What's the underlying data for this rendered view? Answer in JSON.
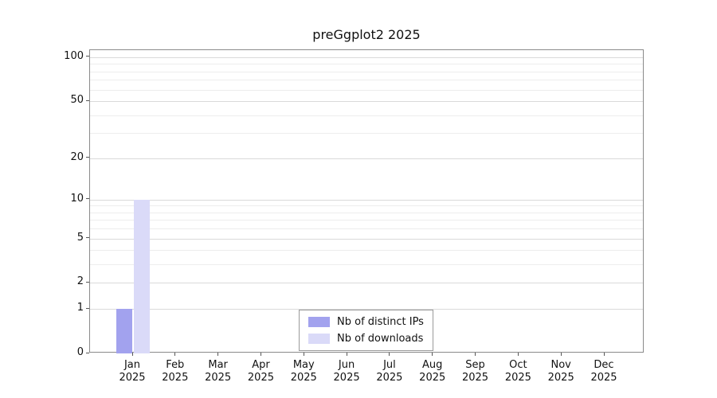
{
  "chart_data": {
    "type": "bar",
    "title": "preGgplot2 2025",
    "x_ticks": [
      {
        "month": "Jan",
        "year": "2025"
      },
      {
        "month": "Feb",
        "year": "2025"
      },
      {
        "month": "Mar",
        "year": "2025"
      },
      {
        "month": "Apr",
        "year": "2025"
      },
      {
        "month": "May",
        "year": "2025"
      },
      {
        "month": "Jun",
        "year": "2025"
      },
      {
        "month": "Jul",
        "year": "2025"
      },
      {
        "month": "Aug",
        "year": "2025"
      },
      {
        "month": "Sep",
        "year": "2025"
      },
      {
        "month": "Oct",
        "year": "2025"
      },
      {
        "month": "Nov",
        "year": "2025"
      },
      {
        "month": "Dec",
        "year": "2025"
      }
    ],
    "y_ticks": [
      0,
      1,
      2,
      5,
      10,
      20,
      50,
      100
    ],
    "y_minor_gridlines": [
      3,
      4,
      6,
      7,
      8,
      9,
      30,
      40,
      60,
      70,
      80,
      90
    ],
    "y_scale": "log1p",
    "ylim": [
      0,
      112
    ],
    "grid": true,
    "legend_position": "bottom-center-inside",
    "series": [
      {
        "name": "Nb of distinct IPs",
        "color": "#a2a2ee",
        "values": [
          1,
          0,
          0,
          0,
          0,
          0,
          0,
          0,
          0,
          0,
          0,
          0
        ]
      },
      {
        "name": "Nb of downloads",
        "color": "#dadaf8",
        "values": [
          10,
          0,
          0,
          0,
          0,
          0,
          0,
          0,
          0,
          0,
          0,
          0
        ]
      }
    ]
  }
}
